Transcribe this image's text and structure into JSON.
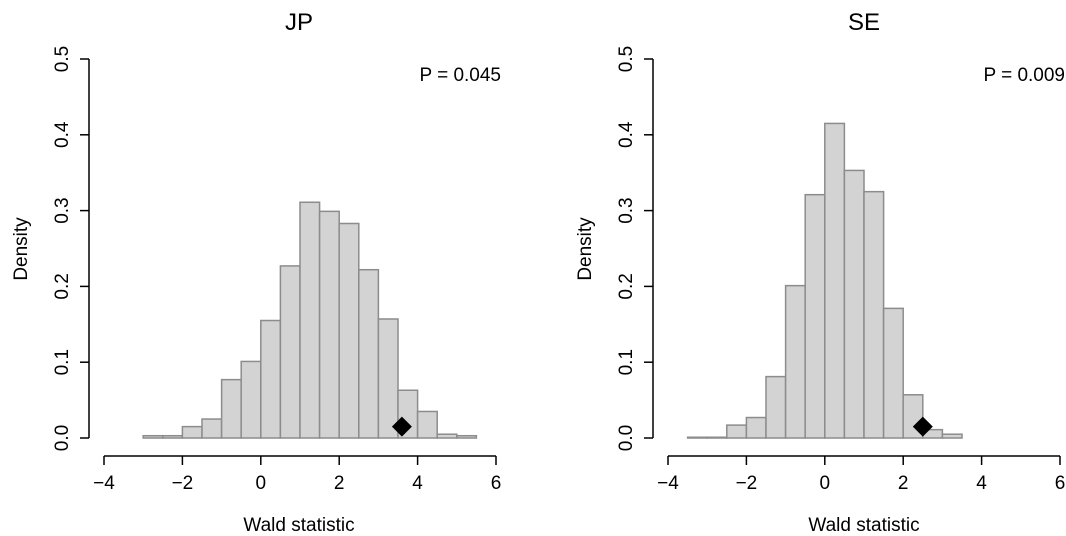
{
  "chart_data": [
    {
      "type": "bar",
      "title": "JP",
      "xlabel": "Wald statistic",
      "ylabel": "Density",
      "annotation": "P = 0.045",
      "xlim": [
        -4,
        6
      ],
      "ylim": [
        0,
        0.5
      ],
      "xticks": [
        "−4",
        "−2",
        "0",
        "2",
        "4",
        "6"
      ],
      "yticks": [
        "0.0",
        "0.1",
        "0.2",
        "0.3",
        "0.4",
        "0.5"
      ],
      "bin_width": 0.5,
      "bin_edges_start": -3.0,
      "values": [
        0.003,
        0.003,
        0.015,
        0.025,
        0.077,
        0.101,
        0.155,
        0.227,
        0.311,
        0.299,
        0.283,
        0.222,
        0.157,
        0.063,
        0.035,
        0.005,
        0.003
      ],
      "observed": {
        "x": 3.6,
        "y": 0.015
      },
      "bar_fill": "#d3d3d3",
      "bar_stroke": "#8c8c8c",
      "marker_color": "#000000",
      "grid": false
    },
    {
      "type": "bar",
      "title": "SE",
      "xlabel": "Wald statistic",
      "ylabel": "Density",
      "annotation": "P = 0.009",
      "xlim": [
        -4,
        6
      ],
      "ylim": [
        0,
        0.5
      ],
      "xticks": [
        "−4",
        "−2",
        "0",
        "2",
        "4",
        "6"
      ],
      "yticks": [
        "0.0",
        "0.1",
        "0.2",
        "0.3",
        "0.4",
        "0.5"
      ],
      "bin_width": 0.5,
      "bin_edges_start": -3.5,
      "values": [
        0.001,
        0.001,
        0.017,
        0.027,
        0.081,
        0.201,
        0.321,
        0.415,
        0.353,
        0.325,
        0.171,
        0.057,
        0.011,
        0.005
      ],
      "observed": {
        "x": 2.5,
        "y": 0.015
      },
      "bar_fill": "#d3d3d3",
      "bar_stroke": "#8c8c8c",
      "marker_color": "#000000",
      "grid": false
    }
  ]
}
